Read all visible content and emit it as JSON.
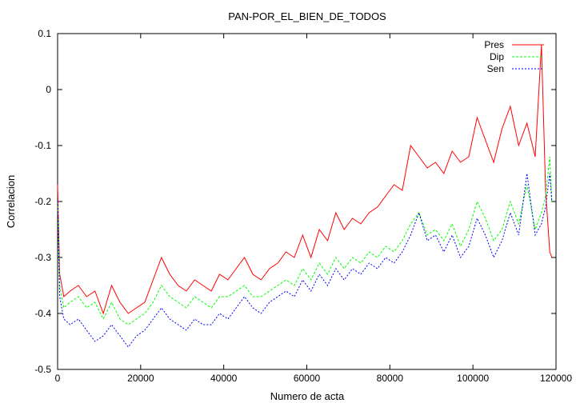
{
  "chart_data": {
    "type": "line",
    "title": "PAN-POR_EL_BIEN_DE_TODOS",
    "xlabel": "Numero de acta",
    "ylabel": "Correlacion",
    "xlim": [
      0,
      120000
    ],
    "ylim": [
      -0.5,
      0.1
    ],
    "xticks": [
      0,
      20000,
      40000,
      60000,
      80000,
      100000,
      120000
    ],
    "xtick_labels": [
      "0",
      "20000",
      "40000",
      "60000",
      "80000",
      "100000",
      "120000"
    ],
    "yticks": [
      -0.5,
      -0.4,
      -0.3,
      -0.2,
      -0.1,
      0,
      0.1
    ],
    "ytick_labels": [
      "-0.5",
      "-0.4",
      "-0.3",
      "-0.2",
      "-0.1",
      "0",
      "0.1"
    ],
    "grid": false,
    "legend_position": "top-right",
    "series": [
      {
        "name": "Pres",
        "color": "#ff0000",
        "x": [
          0,
          500,
          1500,
          3000,
          5000,
          7000,
          9000,
          11000,
          13000,
          15000,
          17000,
          19000,
          21000,
          23000,
          25000,
          27000,
          29000,
          31000,
          33000,
          35000,
          37000,
          39000,
          41000,
          43000,
          45000,
          47000,
          49000,
          51000,
          53000,
          55000,
          57000,
          59000,
          61000,
          63000,
          65000,
          67000,
          69000,
          71000,
          73000,
          75000,
          77000,
          79000,
          81000,
          83000,
          85000,
          87000,
          89000,
          91000,
          93000,
          95000,
          97000,
          99000,
          101000,
          103000,
          105000,
          107000,
          109000,
          111000,
          113000,
          115000,
          116500,
          117500,
          118500,
          119000
        ],
        "y": [
          -0.17,
          -0.33,
          -0.37,
          -0.36,
          -0.35,
          -0.37,
          -0.36,
          -0.4,
          -0.35,
          -0.38,
          -0.4,
          -0.39,
          -0.38,
          -0.34,
          -0.3,
          -0.33,
          -0.35,
          -0.36,
          -0.34,
          -0.35,
          -0.36,
          -0.33,
          -0.34,
          -0.32,
          -0.3,
          -0.33,
          -0.34,
          -0.32,
          -0.31,
          -0.29,
          -0.3,
          -0.26,
          -0.3,
          -0.25,
          -0.27,
          -0.22,
          -0.25,
          -0.23,
          -0.24,
          -0.22,
          -0.21,
          -0.19,
          -0.17,
          -0.18,
          -0.1,
          -0.12,
          -0.14,
          -0.13,
          -0.15,
          -0.11,
          -0.13,
          -0.12,
          -0.05,
          -0.09,
          -0.13,
          -0.07,
          -0.03,
          -0.1,
          -0.06,
          -0.12,
          0.08,
          -0.18,
          -0.29,
          -0.3
        ]
      },
      {
        "name": "Dip",
        "color": "#00ff00",
        "x": [
          0,
          500,
          1500,
          3000,
          5000,
          7000,
          9000,
          11000,
          13000,
          15000,
          17000,
          19000,
          21000,
          23000,
          25000,
          27000,
          29000,
          31000,
          33000,
          35000,
          37000,
          39000,
          41000,
          43000,
          45000,
          47000,
          49000,
          51000,
          53000,
          55000,
          57000,
          59000,
          61000,
          63000,
          65000,
          67000,
          69000,
          71000,
          73000,
          75000,
          77000,
          79000,
          81000,
          83000,
          85000,
          87000,
          89000,
          91000,
          93000,
          95000,
          97000,
          99000,
          101000,
          103000,
          105000,
          107000,
          109000,
          111000,
          113000,
          115000,
          116500,
          117500,
          118500,
          119000
        ],
        "y": [
          -0.2,
          -0.35,
          -0.39,
          -0.38,
          -0.37,
          -0.39,
          -0.38,
          -0.41,
          -0.38,
          -0.41,
          -0.42,
          -0.41,
          -0.4,
          -0.38,
          -0.35,
          -0.37,
          -0.38,
          -0.39,
          -0.37,
          -0.38,
          -0.39,
          -0.37,
          -0.37,
          -0.36,
          -0.35,
          -0.37,
          -0.37,
          -0.36,
          -0.35,
          -0.34,
          -0.35,
          -0.32,
          -0.34,
          -0.31,
          -0.33,
          -0.3,
          -0.32,
          -0.3,
          -0.31,
          -0.29,
          -0.3,
          -0.28,
          -0.29,
          -0.27,
          -0.24,
          -0.22,
          -0.26,
          -0.25,
          -0.27,
          -0.24,
          -0.28,
          -0.25,
          -0.2,
          -0.23,
          -0.27,
          -0.25,
          -0.2,
          -0.24,
          -0.17,
          -0.25,
          -0.22,
          -0.19,
          -0.12,
          -0.2
        ]
      },
      {
        "name": "Sen",
        "color": "#0000ff",
        "x": [
          0,
          500,
          1500,
          3000,
          5000,
          7000,
          9000,
          11000,
          13000,
          15000,
          17000,
          19000,
          21000,
          23000,
          25000,
          27000,
          29000,
          31000,
          33000,
          35000,
          37000,
          39000,
          41000,
          43000,
          45000,
          47000,
          49000,
          51000,
          53000,
          55000,
          57000,
          59000,
          61000,
          63000,
          65000,
          67000,
          69000,
          71000,
          73000,
          75000,
          77000,
          79000,
          81000,
          83000,
          85000,
          87000,
          89000,
          91000,
          93000,
          95000,
          97000,
          99000,
          101000,
          103000,
          105000,
          107000,
          109000,
          111000,
          113000,
          115000,
          116500,
          117500,
          118500,
          119000
        ],
        "y": [
          -0.2,
          -0.37,
          -0.41,
          -0.42,
          -0.41,
          -0.43,
          -0.45,
          -0.44,
          -0.42,
          -0.44,
          -0.46,
          -0.44,
          -0.43,
          -0.41,
          -0.39,
          -0.41,
          -0.42,
          -0.43,
          -0.41,
          -0.42,
          -0.42,
          -0.4,
          -0.41,
          -0.39,
          -0.37,
          -0.39,
          -0.4,
          -0.38,
          -0.37,
          -0.36,
          -0.37,
          -0.34,
          -0.36,
          -0.33,
          -0.35,
          -0.32,
          -0.34,
          -0.32,
          -0.33,
          -0.31,
          -0.32,
          -0.3,
          -0.31,
          -0.29,
          -0.26,
          -0.22,
          -0.27,
          -0.26,
          -0.29,
          -0.26,
          -0.3,
          -0.28,
          -0.23,
          -0.26,
          -0.3,
          -0.27,
          -0.22,
          -0.26,
          -0.15,
          -0.26,
          -0.24,
          -0.21,
          -0.15,
          -0.2
        ]
      }
    ]
  }
}
